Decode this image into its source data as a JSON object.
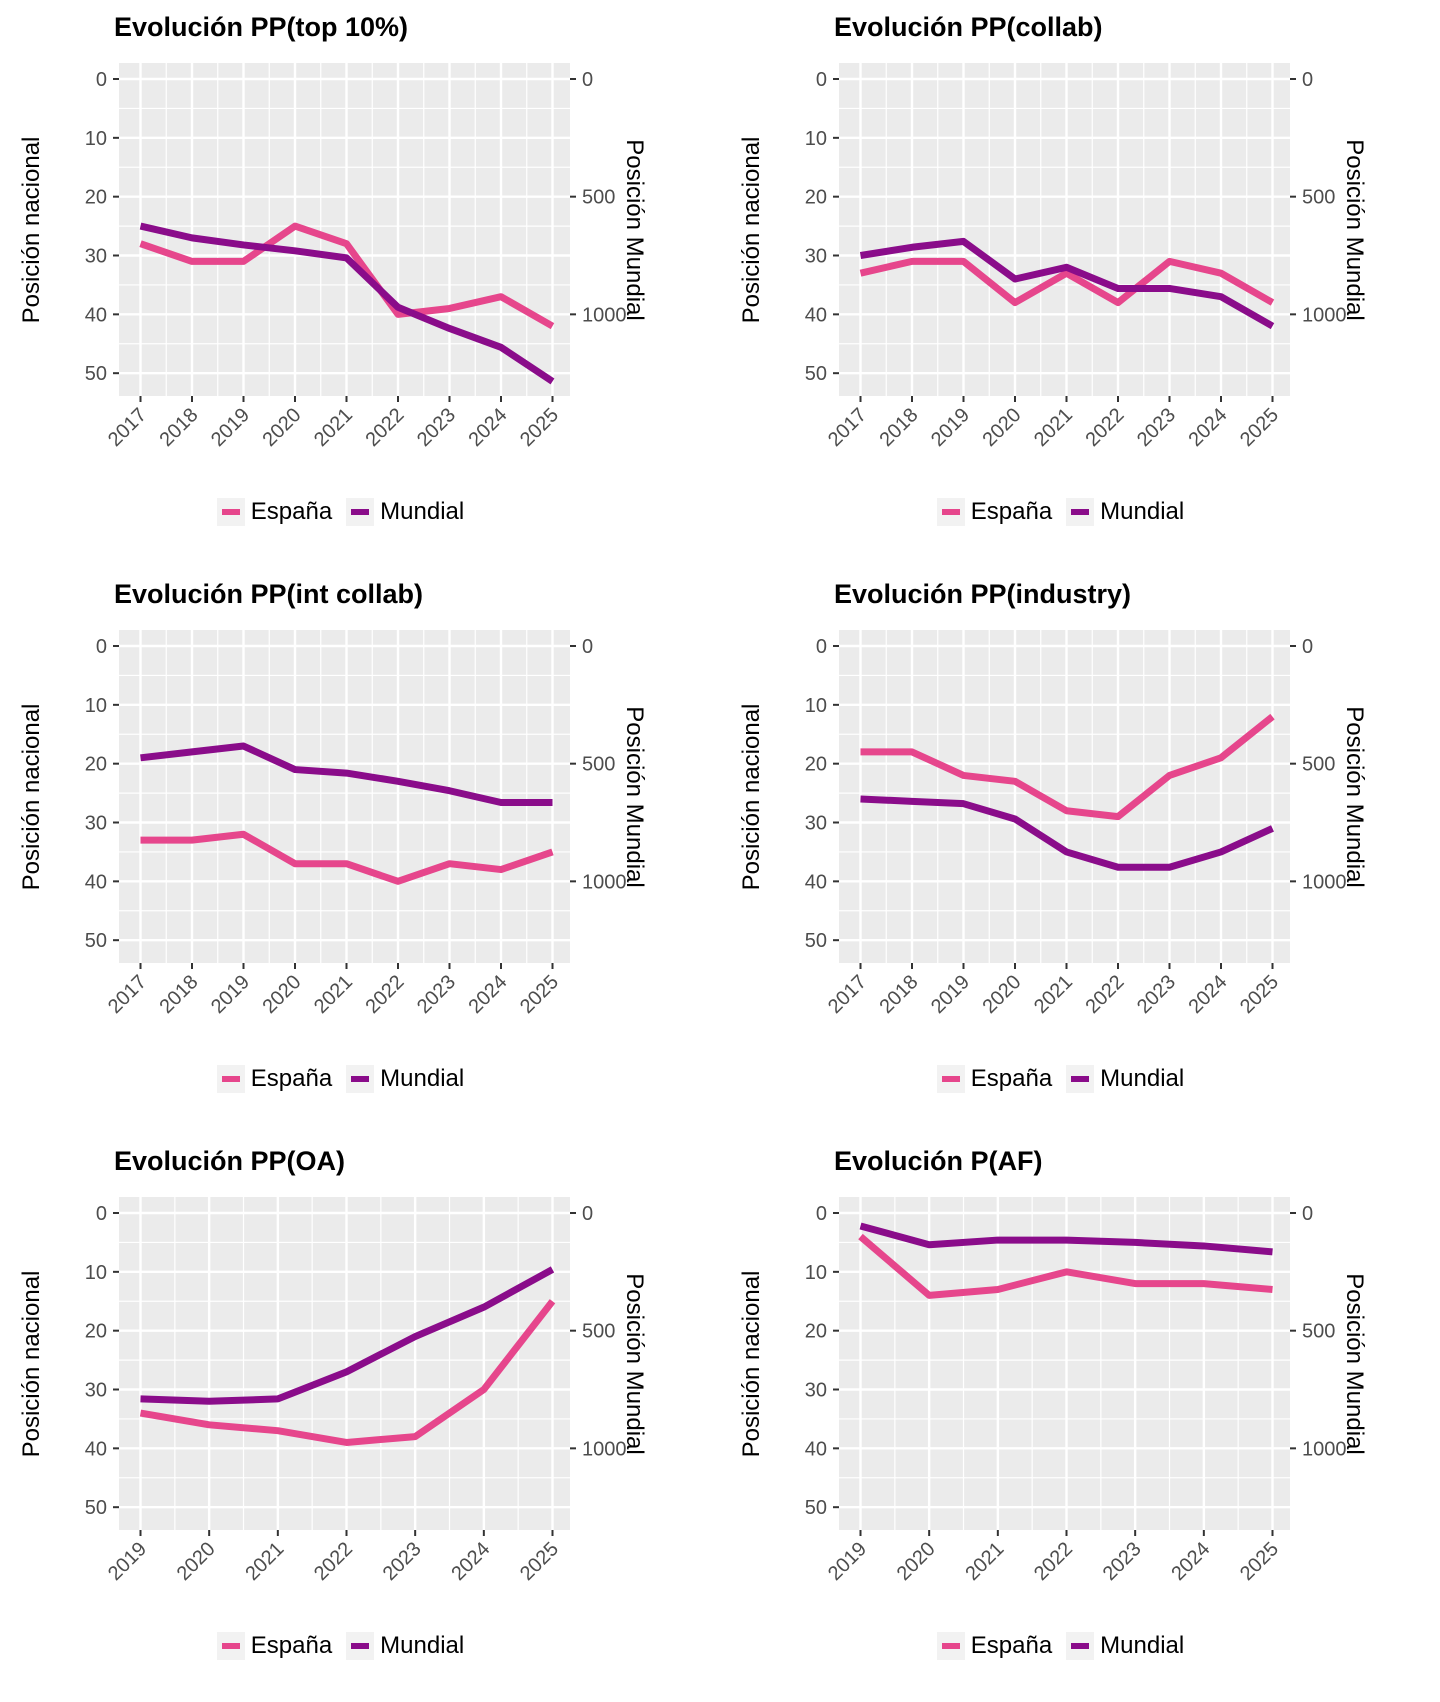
{
  "figure": {
    "left_axis_label": "Posición nacional",
    "right_axis_label": "Posición Mundial",
    "left_ticks": [
      0,
      10,
      20,
      30,
      40,
      50
    ],
    "right_ticks": [
      0,
      500,
      1000
    ],
    "right_per_left_unit": 25,
    "legend": {
      "espana": "España",
      "mundial": "Mundial"
    }
  },
  "colors": {
    "espana": "#E6468C",
    "mundial": "#8A0C8A",
    "panel_bg": "#EBEBEB",
    "grid": "#FFFFFF",
    "tick_text": "#4D4D4D",
    "tick_mark": "#333333",
    "legend_key_bg": "#F2F2F2"
  },
  "chart_data": [
    {
      "type": "line",
      "title": "Evolución PP(top 10%)",
      "xlabel": "",
      "ylabel": "Posición nacional",
      "ylabel_right": "Posición Mundial",
      "ylim_left": [
        0,
        50
      ],
      "ylim_right": [
        0,
        1250
      ],
      "y_axis_inverted": true,
      "grid": true,
      "legend_position": "bottom",
      "x": [
        2017,
        2018,
        2019,
        2020,
        2021,
        2022,
        2023,
        2024,
        2025
      ],
      "series": [
        {
          "name": "España",
          "axis": "left",
          "values": [
            28,
            31,
            31,
            25,
            28,
            40,
            39,
            37,
            42
          ]
        },
        {
          "name": "Mundial",
          "axis": "right",
          "values": [
            625,
            675,
            705,
            730,
            760,
            970,
            1060,
            1140,
            1285
          ]
        }
      ]
    },
    {
      "type": "line",
      "title": "Evolución PP(collab)",
      "xlabel": "",
      "ylabel": "Posición nacional",
      "ylabel_right": "Posición Mundial",
      "ylim_left": [
        0,
        50
      ],
      "ylim_right": [
        0,
        1250
      ],
      "y_axis_inverted": true,
      "grid": true,
      "legend_position": "bottom",
      "x": [
        2017,
        2018,
        2019,
        2020,
        2021,
        2022,
        2023,
        2024,
        2025
      ],
      "series": [
        {
          "name": "España",
          "axis": "left",
          "values": [
            33,
            31,
            31,
            38,
            33,
            38,
            31,
            33,
            38
          ]
        },
        {
          "name": "Mundial",
          "axis": "right",
          "values": [
            750,
            715,
            690,
            850,
            800,
            890,
            890,
            925,
            1050
          ]
        }
      ]
    },
    {
      "type": "line",
      "title": "Evolución PP(int collab)",
      "xlabel": "",
      "ylabel": "Posición nacional",
      "ylabel_right": "Posición Mundial",
      "ylim_left": [
        0,
        50
      ],
      "ylim_right": [
        0,
        1250
      ],
      "y_axis_inverted": true,
      "grid": true,
      "legend_position": "bottom",
      "x": [
        2017,
        2018,
        2019,
        2020,
        2021,
        2022,
        2023,
        2024,
        2025
      ],
      "series": [
        {
          "name": "España",
          "axis": "left",
          "values": [
            33,
            33,
            32,
            37,
            37,
            40,
            37,
            38,
            35
          ]
        },
        {
          "name": "Mundial",
          "axis": "right",
          "values": [
            475,
            450,
            425,
            525,
            540,
            575,
            615,
            665,
            665
          ]
        }
      ]
    },
    {
      "type": "line",
      "title": "Evolución PP(industry)",
      "xlabel": "",
      "ylabel": "Posición nacional",
      "ylabel_right": "Posición Mundial",
      "ylim_left": [
        0,
        50
      ],
      "ylim_right": [
        0,
        1250
      ],
      "y_axis_inverted": true,
      "grid": true,
      "legend_position": "bottom",
      "x": [
        2017,
        2018,
        2019,
        2020,
        2021,
        2022,
        2023,
        2024,
        2025
      ],
      "series": [
        {
          "name": "España",
          "axis": "left",
          "values": [
            18,
            18,
            22,
            23,
            28,
            29,
            22,
            19,
            12
          ]
        },
        {
          "name": "Mundial",
          "axis": "right",
          "values": [
            650,
            660,
            670,
            735,
            875,
            940,
            940,
            875,
            775
          ]
        }
      ]
    },
    {
      "type": "line",
      "title": "Evolución PP(OA)",
      "xlabel": "",
      "ylabel": "Posición nacional",
      "ylabel_right": "Posición Mundial",
      "ylim_left": [
        0,
        50
      ],
      "ylim_right": [
        0,
        1250
      ],
      "y_axis_inverted": true,
      "grid": true,
      "legend_position": "bottom",
      "x": [
        2019,
        2020,
        2021,
        2022,
        2023,
        2024,
        2025
      ],
      "series": [
        {
          "name": "España",
          "axis": "left",
          "values": [
            34,
            36,
            37,
            39,
            38,
            30,
            15
          ]
        },
        {
          "name": "Mundial",
          "axis": "right",
          "values": [
            790,
            800,
            790,
            675,
            525,
            400,
            240
          ]
        }
      ]
    },
    {
      "type": "line",
      "title": "Evolución P(AF)",
      "xlabel": "",
      "ylabel": "Posición nacional",
      "ylabel_right": "Posición Mundial",
      "ylim_left": [
        0,
        50
      ],
      "ylim_right": [
        0,
        1250
      ],
      "y_axis_inverted": true,
      "grid": true,
      "legend_position": "bottom",
      "x": [
        2019,
        2020,
        2021,
        2022,
        2023,
        2024,
        2025
      ],
      "series": [
        {
          "name": "España",
          "axis": "left",
          "values": [
            4,
            14,
            13,
            10,
            12,
            12,
            13
          ]
        },
        {
          "name": "Mundial",
          "axis": "right",
          "values": [
            55,
            135,
            115,
            115,
            125,
            140,
            165
          ]
        }
      ]
    }
  ]
}
